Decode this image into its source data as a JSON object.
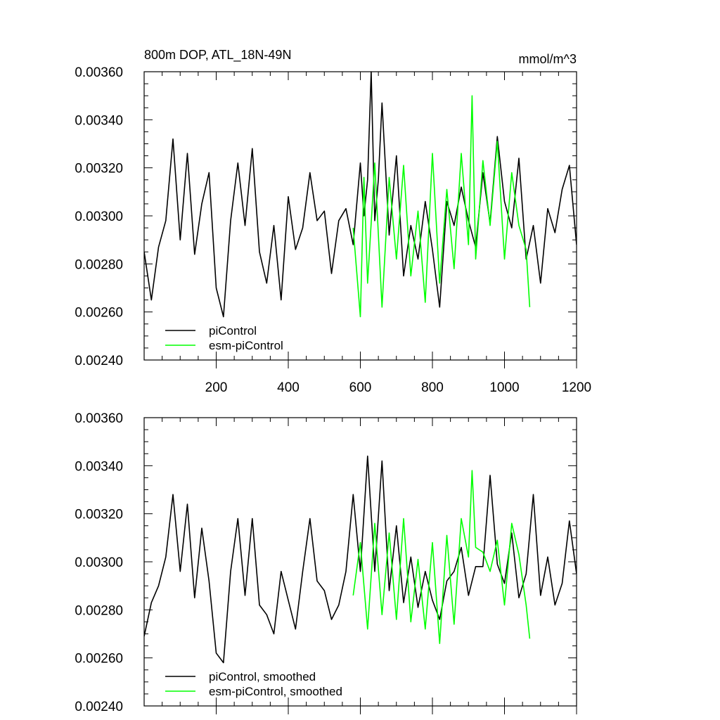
{
  "colors": {
    "piControl": "#000000",
    "esm": "#00ff00"
  },
  "chart_data": [
    {
      "type": "line",
      "title": "800m DOP, ATL_18N-49N",
      "units": "mmol/m^3",
      "xlim": [
        0,
        1200
      ],
      "ylim": [
        0.0024,
        0.0036
      ],
      "xticks": [
        "200",
        "400",
        "600",
        "800",
        "1000",
        "1200"
      ],
      "yticks": [
        "0.00240",
        "0.00260",
        "0.00280",
        "0.00300",
        "0.00320",
        "0.00340",
        "0.00360"
      ],
      "legend": "bottom-left",
      "series": [
        {
          "name": "piControl",
          "color": "#000000",
          "x": [
            0,
            20,
            40,
            60,
            80,
            100,
            120,
            140,
            160,
            180,
            200,
            220,
            240,
            260,
            280,
            300,
            320,
            340,
            360,
            380,
            400,
            420,
            440,
            460,
            480,
            500,
            520,
            540,
            560,
            580,
            600,
            610,
            620,
            630,
            640,
            650,
            660,
            680,
            700,
            720,
            740,
            760,
            780,
            800,
            820,
            840,
            860,
            880,
            900,
            920,
            940,
            960,
            980,
            1000,
            1020,
            1040,
            1060,
            1080,
            1100,
            1120,
            1140,
            1160,
            1180,
            1200
          ],
          "y": [
            0.00285,
            0.00265,
            0.00287,
            0.00298,
            0.00332,
            0.0029,
            0.00326,
            0.00284,
            0.00305,
            0.00318,
            0.0027,
            0.00258,
            0.00298,
            0.00322,
            0.00296,
            0.00328,
            0.00285,
            0.00272,
            0.00296,
            0.00265,
            0.00308,
            0.00286,
            0.00295,
            0.00318,
            0.00298,
            0.00302,
            0.00276,
            0.00298,
            0.00303,
            0.00288,
            0.00322,
            0.003,
            0.00315,
            0.0036,
            0.00298,
            0.00315,
            0.00347,
            0.00292,
            0.00325,
            0.00275,
            0.00296,
            0.00282,
            0.00306,
            0.00286,
            0.00262,
            0.00306,
            0.00296,
            0.00312,
            0.00298,
            0.00287,
            0.00318,
            0.00297,
            0.00333,
            0.00306,
            0.00295,
            0.00324,
            0.00282,
            0.00296,
            0.00272,
            0.00303,
            0.00293,
            0.00311,
            0.00321,
            0.00288
          ]
        },
        {
          "name": "esm-piControl",
          "color": "#00ff00",
          "x": [
            580,
            600,
            610,
            620,
            640,
            660,
            680,
            700,
            720,
            740,
            760,
            780,
            800,
            820,
            840,
            860,
            880,
            900,
            910,
            920,
            940,
            960,
            980,
            1000,
            1020,
            1040,
            1060,
            1070
          ],
          "y": [
            0.00295,
            0.00258,
            0.00316,
            0.00272,
            0.00322,
            0.00262,
            0.00316,
            0.00282,
            0.00321,
            0.00275,
            0.00302,
            0.00264,
            0.00326,
            0.00272,
            0.00311,
            0.00278,
            0.00326,
            0.00288,
            0.0035,
            0.00282,
            0.00323,
            0.00296,
            0.00331,
            0.00282,
            0.00318,
            0.00296,
            0.00286,
            0.00262
          ]
        }
      ]
    },
    {
      "type": "line",
      "xlim": [
        0,
        1200
      ],
      "ylim": [
        0.0024,
        0.0036
      ],
      "yticks": [
        "0.00240",
        "0.00260",
        "0.00280",
        "0.00300",
        "0.00320",
        "0.00340",
        "0.00360"
      ],
      "legend": "bottom-left",
      "series": [
        {
          "name": "piControl, smoothed",
          "color": "#000000",
          "x": [
            0,
            20,
            40,
            60,
            80,
            100,
            120,
            140,
            160,
            180,
            200,
            220,
            240,
            260,
            280,
            300,
            320,
            340,
            360,
            380,
            400,
            420,
            440,
            460,
            480,
            500,
            520,
            540,
            560,
            580,
            600,
            620,
            640,
            660,
            680,
            700,
            720,
            740,
            760,
            780,
            800,
            820,
            840,
            860,
            880,
            900,
            920,
            940,
            960,
            980,
            1000,
            1020,
            1040,
            1060,
            1080,
            1100,
            1120,
            1140,
            1160,
            1180,
            1200
          ],
          "y": [
            0.00269,
            0.00283,
            0.0029,
            0.00302,
            0.00328,
            0.00296,
            0.00324,
            0.00285,
            0.00314,
            0.00292,
            0.00262,
            0.00258,
            0.00296,
            0.00318,
            0.00286,
            0.00318,
            0.00282,
            0.00278,
            0.0027,
            0.00296,
            0.00284,
            0.00272,
            0.00296,
            0.00318,
            0.00292,
            0.00288,
            0.00276,
            0.00282,
            0.00296,
            0.00328,
            0.00296,
            0.00344,
            0.00296,
            0.00342,
            0.00288,
            0.00315,
            0.00283,
            0.00302,
            0.00281,
            0.00296,
            0.00284,
            0.00276,
            0.00292,
            0.00296,
            0.00306,
            0.00286,
            0.00298,
            0.00298,
            0.00336,
            0.00299,
            0.00291,
            0.00312,
            0.00285,
            0.00295,
            0.00328,
            0.00286,
            0.00302,
            0.00282,
            0.00291,
            0.00317,
            0.00295
          ]
        },
        {
          "name": "esm-piControl, smoothed",
          "color": "#00ff00",
          "x": [
            580,
            600,
            620,
            640,
            660,
            680,
            700,
            720,
            740,
            760,
            780,
            800,
            820,
            840,
            860,
            880,
            900,
            910,
            920,
            940,
            960,
            980,
            1000,
            1020,
            1040,
            1060,
            1070
          ],
          "y": [
            0.00286,
            0.00308,
            0.00272,
            0.00316,
            0.00278,
            0.00312,
            0.00276,
            0.00318,
            0.00275,
            0.00301,
            0.00272,
            0.00308,
            0.00266,
            0.00311,
            0.00274,
            0.00318,
            0.00302,
            0.00338,
            0.00306,
            0.00304,
            0.00296,
            0.00309,
            0.00282,
            0.00316,
            0.00303,
            0.00282,
            0.00268
          ]
        }
      ]
    }
  ]
}
